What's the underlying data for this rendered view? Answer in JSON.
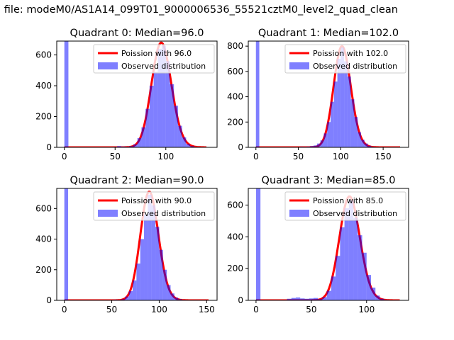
{
  "suptitle": "n file: modeM0/AS1A14_099T01_9000006536_55521cztM0_level2_quad_clean",
  "colors": {
    "bars": "#0000ff",
    "curve": "#ff0000"
  },
  "chart_data": [
    {
      "type": "bar",
      "title": "Quadrant 0: Median=96.0",
      "xlim": [
        -7.5,
        150.5
      ],
      "ylim": [
        0,
        690
      ],
      "xticks": [
        0,
        50,
        100
      ],
      "yticks": [
        0,
        200,
        400,
        600
      ],
      "legend": {
        "placement": "top-right",
        "line_label": "Poission with 96.0",
        "bar_label": "Observed distribution"
      },
      "bin_start": 0,
      "bin_width": 4,
      "counts": [
        1200,
        0,
        0,
        0,
        0,
        0,
        0,
        0,
        0,
        0,
        0,
        0,
        3,
        8,
        5,
        4,
        8,
        20,
        60,
        130,
        250,
        400,
        490,
        640,
        660,
        560,
        410,
        270,
        140,
        65,
        22,
        8,
        3,
        1,
        0
      ],
      "poisson": {
        "lambda": 96.0,
        "scale": 16700,
        "x_range": [
          0,
          140
        ]
      }
    },
    {
      "type": "bar",
      "title": "Quadrant 1: Median=102.0",
      "xlim": [
        -9,
        180
      ],
      "ylim": [
        0,
        840
      ],
      "xticks": [
        0,
        50,
        100,
        150
      ],
      "yticks": [
        0,
        200,
        400,
        600,
        800
      ],
      "legend": {
        "placement": "top-right",
        "line_label": "Poission with 102.0",
        "bar_label": "Observed distribution"
      },
      "bin_start": 0,
      "bin_width": 4,
      "counts": [
        1500,
        0,
        0,
        0,
        0,
        0,
        0,
        0,
        0,
        0,
        0,
        2,
        3,
        5,
        4,
        6,
        10,
        15,
        30,
        55,
        110,
        200,
        360,
        520,
        700,
        790,
        680,
        560,
        380,
        240,
        120,
        60,
        30,
        12,
        5,
        2,
        0,
        0,
        0,
        0,
        0,
        0,
        0
      ],
      "poisson": {
        "lambda": 102.0,
        "scale": 20240,
        "x_range": [
          0,
          170
        ]
      }
    },
    {
      "type": "bar",
      "title": "Quadrant 2: Median=90.0",
      "xlim": [
        -8,
        161
      ],
      "ylim": [
        0,
        731
      ],
      "xticks": [
        0,
        50,
        100,
        150
      ],
      "yticks": [
        0,
        200,
        400,
        600
      ],
      "legend": {
        "placement": "top-right",
        "line_label": "Poission with 90.0",
        "bar_label": "Observed distribution"
      },
      "bin_start": 0,
      "bin_width": 4,
      "counts": [
        1500,
        0,
        0,
        0,
        0,
        0,
        0,
        0,
        0,
        0,
        0,
        0,
        2,
        4,
        3,
        8,
        25,
        60,
        130,
        240,
        400,
        560,
        690,
        620,
        480,
        330,
        200,
        100,
        45,
        18,
        8,
        3,
        0,
        0,
        0,
        0,
        0,
        0
      ],
      "poisson": {
        "lambda": 90.0,
        "scale": 16880,
        "x_range": [
          0,
          152
        ]
      }
    },
    {
      "type": "bar",
      "title": "Quadrant 3: Median=85.0",
      "xlim": [
        -7,
        138
      ],
      "ylim": [
        0,
        705
      ],
      "xticks": [
        0,
        50,
        100
      ],
      "yticks": [
        0,
        200,
        400,
        600
      ],
      "legend": {
        "placement": "top-right",
        "line_label": "Poission with 85.0",
        "bar_label": "Observed distribution"
      },
      "bin_start": 0,
      "bin_width": 4,
      "counts": [
        1500,
        0,
        0,
        0,
        0,
        0,
        0,
        10,
        15,
        18,
        12,
        10,
        12,
        15,
        8,
        20,
        60,
        150,
        280,
        460,
        580,
        630,
        520,
        410,
        300,
        160,
        80,
        30,
        10,
        3,
        0,
        0,
        0
      ],
      "poisson": {
        "lambda": 85.0,
        "scale": 15130,
        "x_range": [
          0,
          130
        ]
      }
    }
  ]
}
